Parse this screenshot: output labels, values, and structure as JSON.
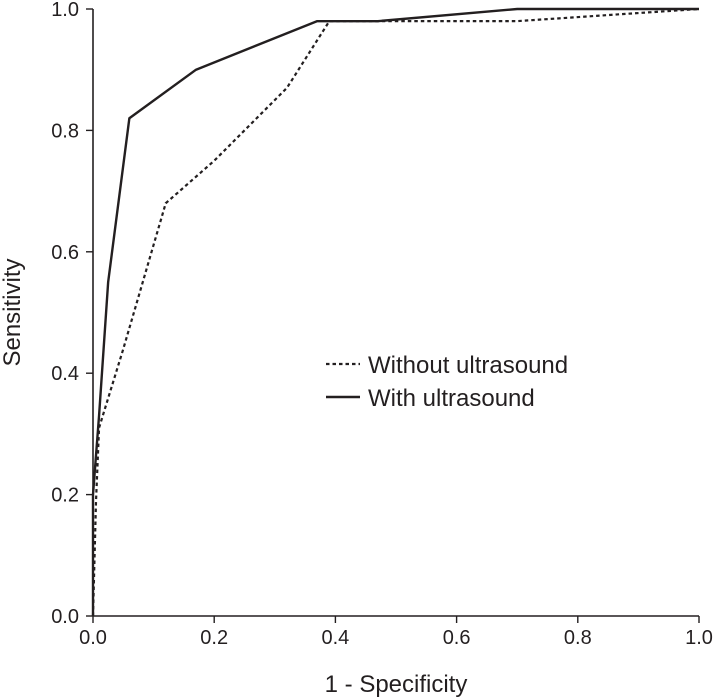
{
  "chart_data": {
    "type": "line",
    "title": "",
    "xlabel": "1 - Specificity",
    "ylabel": "Sensitivity",
    "xlim": [
      0,
      1
    ],
    "ylim": [
      0,
      1
    ],
    "x_ticks": [
      "0.0",
      "0.2",
      "0.4",
      "0.6",
      "0.8",
      "1.0"
    ],
    "y_ticks": [
      "0.0",
      "0.2",
      "0.4",
      "0.6",
      "0.8",
      "1.0"
    ],
    "grid": false,
    "legend_position": "center-right",
    "series": [
      {
        "name": "Without ultrasound",
        "line_style": "dotted",
        "color": "#231f20",
        "points": [
          [
            0.0,
            0.0
          ],
          [
            0.005,
            0.19
          ],
          [
            0.01,
            0.31
          ],
          [
            0.05,
            0.44
          ],
          [
            0.12,
            0.68
          ],
          [
            0.2,
            0.75
          ],
          [
            0.32,
            0.87
          ],
          [
            0.39,
            0.98
          ],
          [
            0.47,
            0.98
          ],
          [
            0.7,
            0.98
          ],
          [
            1.0,
            1.0
          ]
        ]
      },
      {
        "name": "With ultrasound",
        "line_style": "solid",
        "color": "#231f20",
        "points": [
          [
            0.0,
            0.0
          ],
          [
            0.0,
            0.2
          ],
          [
            0.01,
            0.33
          ],
          [
            0.025,
            0.55
          ],
          [
            0.06,
            0.82
          ],
          [
            0.17,
            0.9
          ],
          [
            0.37,
            0.98
          ],
          [
            0.47,
            0.98
          ],
          [
            0.7,
            1.0
          ],
          [
            1.0,
            1.0
          ]
        ]
      }
    ]
  }
}
